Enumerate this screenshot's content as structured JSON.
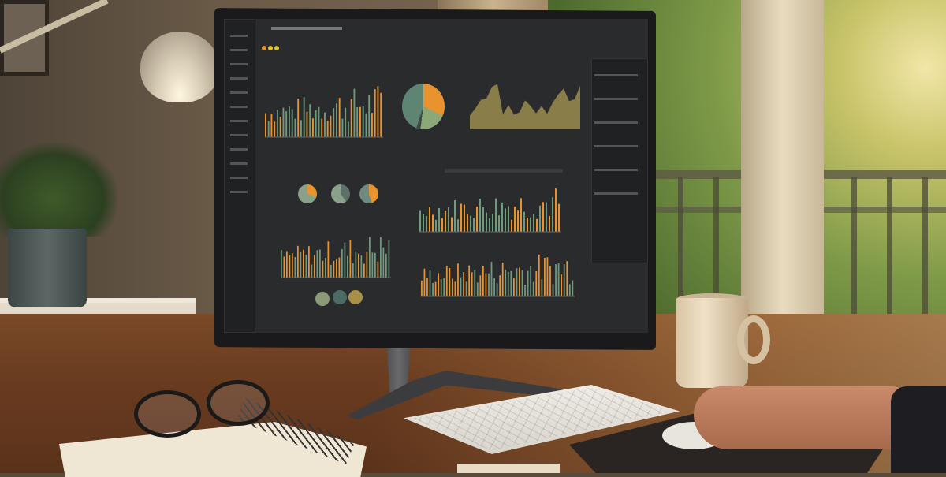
{
  "scene": {
    "colors": {
      "accent_orange": "#e8932e",
      "accent_green": "#6f9a7e",
      "screen_bg": "#2a2b2d",
      "desk_wood": "#6a3c20"
    },
    "icons": [
      "desk-lamp-icon",
      "plant-icon",
      "coffee-mug-icon",
      "glasses-icon",
      "keyboard-icon",
      "mouse-icon"
    ]
  }
}
